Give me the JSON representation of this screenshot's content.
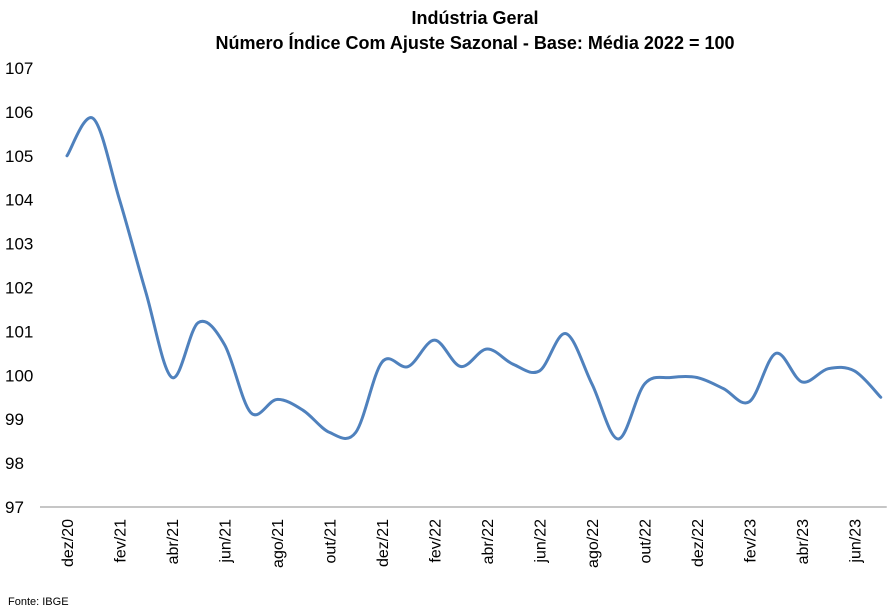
{
  "chart_data": {
    "type": "line",
    "title": "Indústria Geral",
    "subtitle": "Número Índice Com Ajuste Sazonal - Base: Média 2022 = 100",
    "ylim": [
      97,
      107
    ],
    "yticks": [
      97,
      98,
      99,
      100,
      101,
      102,
      103,
      104,
      105,
      106,
      107
    ],
    "x": [
      "dez/20",
      "jan/21",
      "fev/21",
      "mar/21",
      "abr/21",
      "mai/21",
      "jun/21",
      "jul/21",
      "ago/21",
      "set/21",
      "out/21",
      "nov/21",
      "dez/21",
      "jan/22",
      "fev/22",
      "mar/22",
      "abr/22",
      "mai/22",
      "jun/22",
      "jul/22",
      "ago/22",
      "set/22",
      "out/22",
      "nov/22",
      "dez/22",
      "jan/23",
      "fev/23",
      "mar/23",
      "abr/23",
      "mai/23",
      "jun/23",
      "jul/23"
    ],
    "xtick_labels": [
      "dez/20",
      "fev/21",
      "abr/21",
      "jun/21",
      "ago/21",
      "out/21",
      "dez/21",
      "fev/22",
      "abr/22",
      "jun/22",
      "ago/22",
      "out/22",
      "dez/22",
      "fev/23",
      "abr/23",
      "jun/23"
    ],
    "series": [
      {
        "color": "#4f81bd",
        "values": [
          105.0,
          105.85,
          104.0,
          101.9,
          99.95,
          101.2,
          100.7,
          99.15,
          99.45,
          99.2,
          98.7,
          98.7,
          100.3,
          100.2,
          100.8,
          100.2,
          100.6,
          100.25,
          100.1,
          100.95,
          99.8,
          98.55,
          99.8,
          99.95,
          99.95,
          99.7,
          99.4,
          100.5,
          99.85,
          100.15,
          100.1,
          99.5
        ]
      }
    ],
    "grid": false,
    "legend": "none",
    "source": "Fonte: IBGE"
  }
}
